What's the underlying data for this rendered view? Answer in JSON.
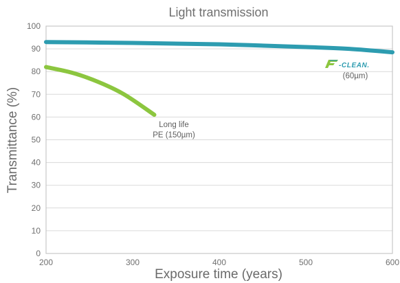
{
  "chart_data": {
    "type": "line",
    "title": "Light transmission",
    "xlabel": "Exposure time (years)",
    "ylabel": "Transmittance (%)",
    "xlim": [
      200,
      600
    ],
    "ylim": [
      0,
      100
    ],
    "x_ticks": [
      200,
      300,
      400,
      500,
      600
    ],
    "y_ticks": [
      0,
      10,
      20,
      30,
      40,
      50,
      60,
      70,
      80,
      90,
      100
    ],
    "grid": true,
    "series": [
      {
        "name": "F-CLEAN (60µm)",
        "color": "#2d9cb0",
        "points": [
          [
            200,
            93
          ],
          [
            300,
            92.6
          ],
          [
            400,
            92
          ],
          [
            500,
            90.8
          ],
          [
            550,
            90
          ],
          [
            600,
            88.5
          ]
        ]
      },
      {
        "name": "Long life PE (150µm)",
        "color": "#8cc63f",
        "points": [
          [
            200,
            82
          ],
          [
            230,
            79.5
          ],
          [
            260,
            75.5
          ],
          [
            290,
            70
          ],
          [
            325,
            61
          ]
        ]
      }
    ],
    "annotations": {
      "fclean_logo": "F-CLEAN.",
      "fclean_thickness": "(60µm)",
      "pe_line1": "Long life",
      "pe_line2": "PE (150µm)"
    }
  }
}
